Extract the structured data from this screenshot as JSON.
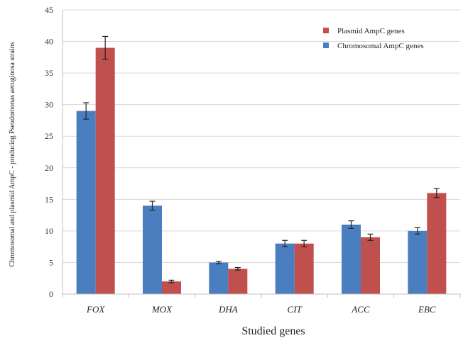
{
  "chart_data": {
    "type": "bar",
    "title": "",
    "xlabel": "Studied genes",
    "ylabel": "Chromosomal and plasmid AmpC - producing Pseudomonas aeruginosa strains",
    "ylim": [
      0,
      45
    ],
    "yticks": [
      "0",
      "5",
      "10",
      "15",
      "20",
      "25",
      "30",
      "35",
      "40",
      "45"
    ],
    "categories": [
      "FOX",
      "MOX",
      "DHA",
      "CIT",
      "ACC",
      "EBC"
    ],
    "grid": true,
    "legend_position": "top-right",
    "series": [
      {
        "name": "Chromosomal AmpC genes",
        "color": "#4a7ebf",
        "values": [
          29,
          14,
          5,
          8,
          11,
          10
        ],
        "errors": [
          1.3,
          0.7,
          0.2,
          0.5,
          0.6,
          0.5
        ]
      },
      {
        "name": "Plasmid AmpC genes",
        "color": "#c0504d",
        "values": [
          39,
          2,
          4,
          8,
          9,
          16
        ],
        "errors": [
          1.8,
          0.2,
          0.2,
          0.5,
          0.5,
          0.7
        ]
      }
    ],
    "legend_order": [
      1,
      0
    ]
  }
}
